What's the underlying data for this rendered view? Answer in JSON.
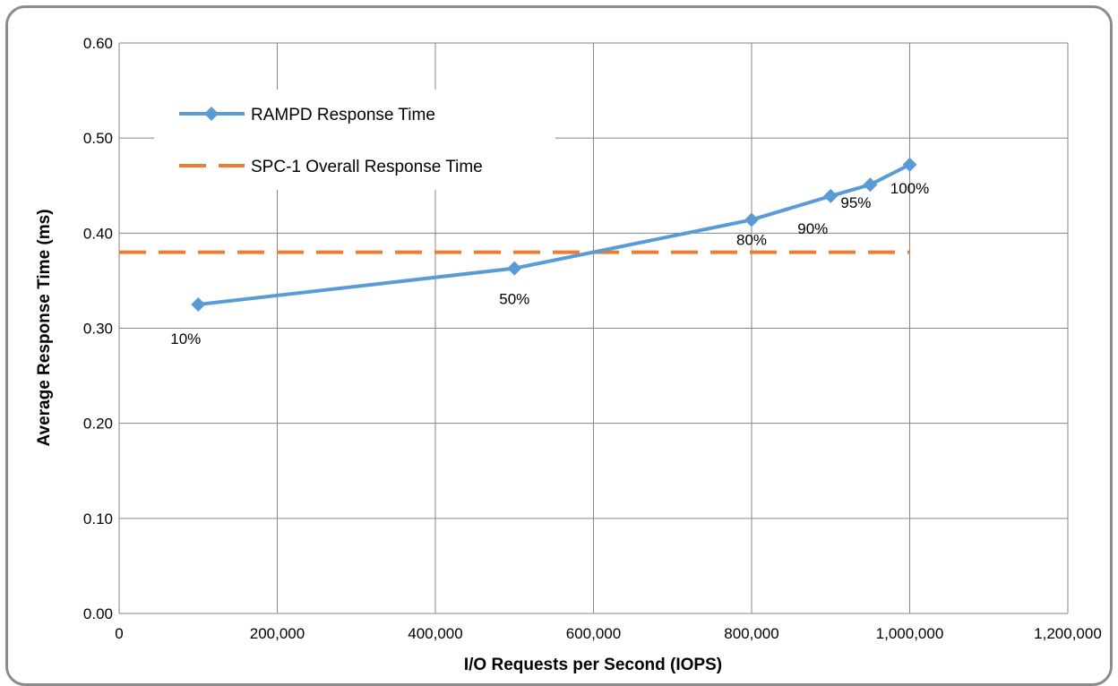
{
  "chart_data": {
    "type": "line",
    "xlabel": "I/O Requests per Second (IOPS)",
    "ylabel": "Average Response Time (ms)",
    "xlim": [
      0,
      1200000
    ],
    "ylim": [
      0,
      0.6
    ],
    "x_ticks": [
      0,
      200000,
      400000,
      600000,
      800000,
      1000000,
      1200000
    ],
    "x_tick_labels": [
      "0",
      "200,000",
      "400,000",
      "600,000",
      "800,000",
      "1,000,000",
      "1,200,000"
    ],
    "y_ticks": [
      0,
      0.1,
      0.2,
      0.3,
      0.4,
      0.5,
      0.6
    ],
    "y_tick_labels": [
      "0.00",
      "0.10",
      "0.20",
      "0.30",
      "0.40",
      "0.50",
      "0.60"
    ],
    "grid": true,
    "legend_position": "top-left",
    "series": [
      {
        "name": "RAMPD Response Time",
        "color": "#5B9BD5",
        "marker": "diamond",
        "x": [
          100000,
          500000,
          800000,
          900000,
          950000,
          1000000
        ],
        "y": [
          0.325,
          0.363,
          0.414,
          0.439,
          0.451,
          0.472
        ],
        "labels": [
          "10%",
          "50%",
          "80%",
          "90%",
          "95%",
          "100%"
        ]
      },
      {
        "name": "SPC-1 Overall Response Time",
        "color": "#ED7D31",
        "style": "dashed",
        "x": [
          0,
          1000000
        ],
        "y": [
          0.38,
          0.38
        ]
      }
    ]
  }
}
